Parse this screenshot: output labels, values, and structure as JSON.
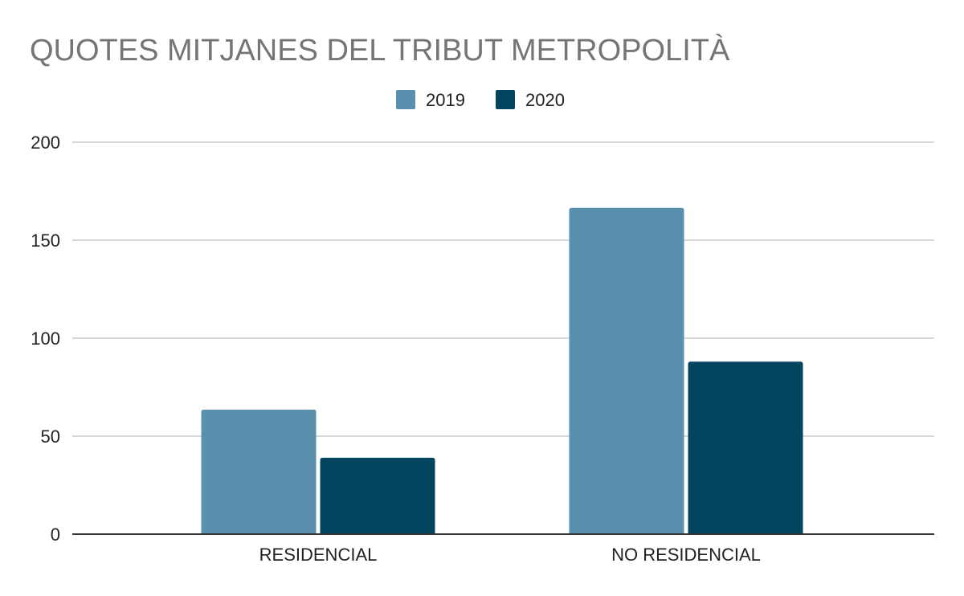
{
  "chart_data": {
    "type": "bar",
    "title": "QUOTES MITJANES DEL TRIBUT METROPOLITÀ",
    "xlabel": "",
    "ylabel": "",
    "categories": [
      "RESIDENCIAL",
      "NO RESIDENCIAL"
    ],
    "series": [
      {
        "name": "2019",
        "color": "#5990ae",
        "values": [
          63.5,
          166.5
        ]
      },
      {
        "name": "2020",
        "color": "#03455f",
        "values": [
          39,
          88
        ]
      }
    ],
    "ylim": [
      0,
      200
    ],
    "yticks": [
      0,
      50,
      100,
      150,
      200
    ],
    "grid": true,
    "legend_position": "top-center"
  }
}
